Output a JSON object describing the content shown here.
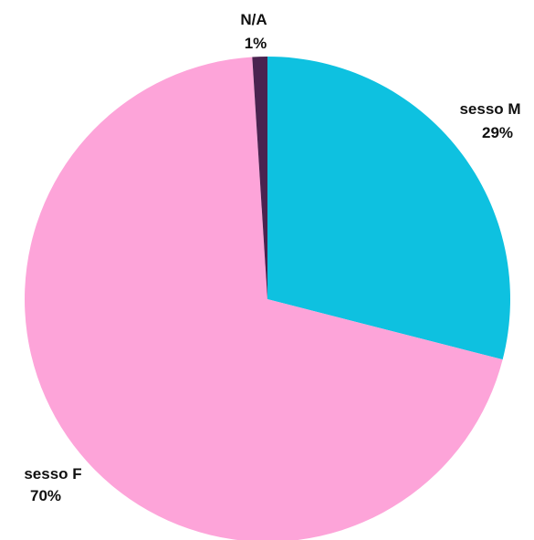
{
  "chart_data": {
    "type": "pie",
    "title": "",
    "start_angle_deg": 0,
    "direction": "clockwise",
    "legend": "none",
    "slices": [
      {
        "label": "sesso M",
        "value": 29,
        "value_label": "29%",
        "color": "#0ec1e0"
      },
      {
        "label": "sesso F",
        "value": 70,
        "value_label": "70%",
        "color": "#fda4d9"
      },
      {
        "label": "N/A",
        "value": 1,
        "value_label": "1%",
        "color": "#4a2350"
      }
    ]
  }
}
